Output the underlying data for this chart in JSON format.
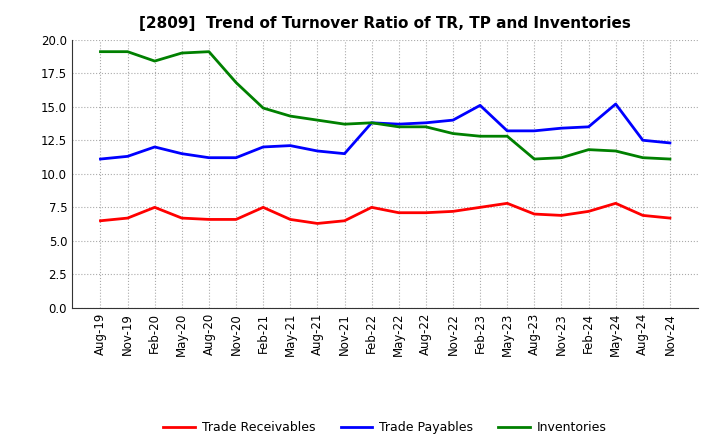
{
  "title": "[2809]  Trend of Turnover Ratio of TR, TP and Inventories",
  "x_labels": [
    "Aug-19",
    "Nov-19",
    "Feb-20",
    "May-20",
    "Aug-20",
    "Nov-20",
    "Feb-21",
    "May-21",
    "Aug-21",
    "Nov-21",
    "Feb-22",
    "May-22",
    "Aug-22",
    "Nov-22",
    "Feb-23",
    "May-23",
    "Aug-23",
    "Nov-23",
    "Feb-24",
    "May-24",
    "Aug-24",
    "Nov-24"
  ],
  "trade_receivables": [
    6.5,
    6.7,
    7.5,
    6.7,
    6.6,
    6.6,
    7.5,
    6.6,
    6.3,
    6.5,
    7.5,
    7.1,
    7.1,
    7.2,
    7.5,
    7.8,
    7.0,
    6.9,
    7.2,
    7.8,
    6.9,
    6.7
  ],
  "trade_payables": [
    11.1,
    11.3,
    12.0,
    11.5,
    11.2,
    11.2,
    12.0,
    12.1,
    11.7,
    11.5,
    13.8,
    13.7,
    13.8,
    14.0,
    15.1,
    13.2,
    13.2,
    13.4,
    13.5,
    15.2,
    12.5,
    12.3
  ],
  "inventories": [
    19.1,
    19.1,
    18.4,
    19.0,
    19.1,
    16.8,
    14.9,
    14.3,
    14.0,
    13.7,
    13.8,
    13.5,
    13.5,
    13.0,
    12.8,
    12.8,
    11.1,
    11.2,
    11.8,
    11.7,
    11.2,
    11.1
  ],
  "trade_receivables_color": "#ff0000",
  "trade_payables_color": "#0000ff",
  "inventories_color": "#008000",
  "ylim": [
    0.0,
    20.0
  ],
  "yticks": [
    0.0,
    2.5,
    5.0,
    7.5,
    10.0,
    12.5,
    15.0,
    17.5,
    20.0
  ],
  "background_color": "#ffffff",
  "grid_color": "#aaaaaa",
  "line_width": 2.0,
  "legend_trade_receivables": "Trade Receivables",
  "legend_trade_payables": "Trade Payables",
  "legend_inventories": "Inventories",
  "title_fontsize": 11,
  "tick_fontsize": 8.5
}
